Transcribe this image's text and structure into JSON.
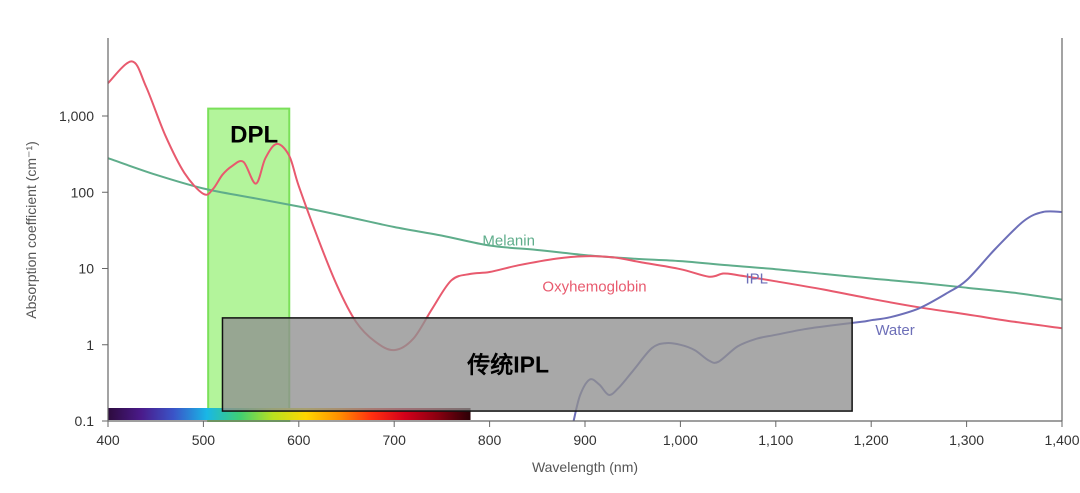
{
  "chart_data": {
    "type": "line",
    "title": "",
    "xlabel": "Wavelength (nm)",
    "ylabel": "Absorption coefficient (cm⁻¹)",
    "x_scale": "linear",
    "y_scale": "log",
    "xlim": [
      400,
      1400
    ],
    "ylim": [
      0.1,
      5000
    ],
    "x_ticks": [
      {
        "value": 400,
        "label": "400"
      },
      {
        "value": 500,
        "label": "500"
      },
      {
        "value": 600,
        "label": "600"
      },
      {
        "value": 700,
        "label": "700"
      },
      {
        "value": 800,
        "label": "800"
      },
      {
        "value": 900,
        "label": "900"
      },
      {
        "value": 1000,
        "label": "1,000"
      },
      {
        "value": 1100,
        "label": "1,100"
      },
      {
        "value": 1200,
        "label": "1,200"
      },
      {
        "value": 1300,
        "label": "1,300"
      },
      {
        "value": 1400,
        "label": "1,400"
      }
    ],
    "y_ticks": [
      {
        "value": 0.1,
        "label": "0.1"
      },
      {
        "value": 1,
        "label": "1"
      },
      {
        "value": 10,
        "label": "10"
      },
      {
        "value": 100,
        "label": "100"
      },
      {
        "value": 1000,
        "label": "1,000"
      }
    ],
    "grid": false,
    "series": [
      {
        "name": "Melanin",
        "color": "#5fad8b",
        "label_at": [
          820,
          20
        ],
        "x": [
          400,
          450,
          500,
          550,
          600,
          650,
          700,
          750,
          800,
          850,
          900,
          950,
          1000,
          1050,
          1100,
          1150,
          1200,
          1250,
          1300,
          1350,
          1400
        ],
        "y": [
          280,
          170,
          112,
          85,
          65,
          48,
          35,
          27,
          20,
          17.5,
          15,
          13.5,
          12.5,
          11,
          9.8,
          8.5,
          7.4,
          6.5,
          5.6,
          4.8,
          3.9
        ]
      },
      {
        "name": "Oxyhemoglobin",
        "color": "#e85a6e",
        "label_at": [
          910,
          5
        ],
        "x": [
          400,
          425,
          440,
          460,
          480,
          500,
          510,
          520,
          530,
          542,
          555,
          565,
          577,
          590,
          600,
          620,
          640,
          660,
          680,
          700,
          720,
          740,
          760,
          780,
          800,
          830,
          870,
          900,
          930,
          960,
          1000,
          1030,
          1045,
          1060,
          1100,
          1150,
          1200,
          1250,
          1300,
          1350,
          1400
        ],
        "y": [
          2700,
          5200,
          2400,
          560,
          180,
          95,
          110,
          170,
          220,
          250,
          130,
          280,
          430,
          300,
          120,
          25,
          6,
          2,
          1.1,
          0.85,
          1.2,
          3,
          7,
          8.5,
          9,
          11,
          13.5,
          14.5,
          14,
          12,
          9.8,
          7.8,
          8.6,
          8.2,
          6.8,
          5.3,
          4,
          3.1,
          2.5,
          2,
          1.65
        ]
      },
      {
        "name": "Water",
        "color": "#6d6fb8",
        "label_at": [
          1225,
          1.35
        ],
        "x": [
          888,
          895,
          905,
          915,
          925,
          935,
          950,
          970,
          985,
          1000,
          1015,
          1030,
          1040,
          1060,
          1080,
          1100,
          1130,
          1160,
          1190,
          1200,
          1220,
          1250,
          1280,
          1300,
          1330,
          1360,
          1380,
          1400
        ],
        "y": [
          0.1,
          0.22,
          0.35,
          0.3,
          0.22,
          0.27,
          0.45,
          0.9,
          1.05,
          1.0,
          0.85,
          0.62,
          0.6,
          0.95,
          1.2,
          1.35,
          1.6,
          1.8,
          2.0,
          2.1,
          2.3,
          3,
          4.8,
          7,
          18,
          42,
          55,
          55
        ]
      }
    ],
    "annotations": [
      {
        "text": "IPL",
        "x": 1080,
        "y": 6.4,
        "color": "#6d6fb8"
      }
    ],
    "highlight_bands": [
      {
        "label": "DPL",
        "x_range": [
          505,
          590
        ],
        "y_range": [
          0.1,
          1250
        ],
        "fill": "#a6f28a",
        "stroke": "#7be05a",
        "opacity": 0.85
      },
      {
        "label": "传统IPL",
        "x_range": [
          520,
          1180
        ],
        "y_range": [
          0.135,
          2.25
        ],
        "fill": "#8f8f8f",
        "stroke": "#111111",
        "opacity": 0.78
      }
    ],
    "spectrum_bar": {
      "x_range": [
        400,
        780
      ],
      "colors": [
        "#2d0b3d",
        "#4a1a8a",
        "#3a55c8",
        "#19b7e6",
        "#3fcf73",
        "#b8e020",
        "#ffd600",
        "#ff9000",
        "#ff3010",
        "#d4001a",
        "#8a0010",
        "#2b0006"
      ]
    }
  }
}
